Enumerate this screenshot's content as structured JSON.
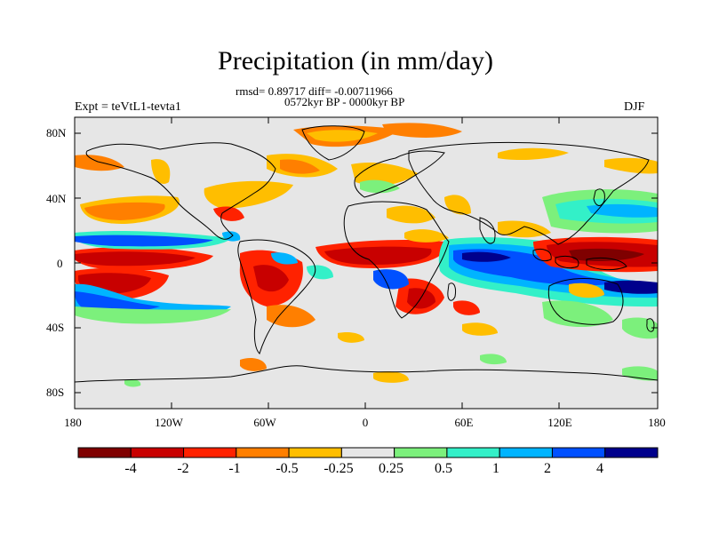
{
  "title": "Precipitation (in mm/day)",
  "stats_line": "rmsd= 0.89717 diff= -0.00711966",
  "period_line": "0572kyr BP - 0000kyr BP",
  "experiment": "Expt = teVtL1-tevta1",
  "season": "DJF",
  "axes": {
    "y_ticks": [
      "80N",
      "40N",
      "0",
      "40S",
      "80S"
    ],
    "x_ticks": [
      "180",
      "120W",
      "60W",
      "0",
      "60E",
      "120E",
      "180"
    ]
  },
  "colorbar": {
    "labels": [
      "-4",
      "-2",
      "-1",
      "-0.5",
      "-0.25",
      "0.25",
      "0.5",
      "1",
      "2",
      "4"
    ],
    "colors": [
      "#7f0000",
      "#c80000",
      "#ff2200",
      "#ff7f00",
      "#ffbe00",
      "#e6e6e6",
      "#7cf07c",
      "#33f0c8",
      "#00b4ff",
      "#0050ff",
      "#00008c"
    ]
  },
  "map": {
    "ocean_land_fill": "#e6e6e6",
    "coast_color": "#000000"
  }
}
